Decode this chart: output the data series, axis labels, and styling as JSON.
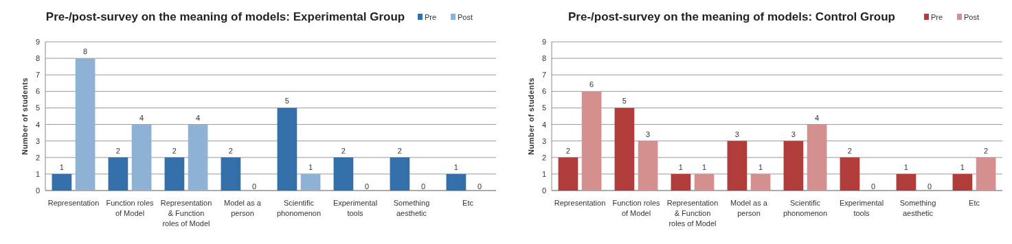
{
  "chart_data": [
    {
      "type": "bar",
      "title": "Pre-/post-survey on the meaning of models: Experimental Group",
      "ylabel": "Number of students",
      "categories": [
        "Representation",
        "Function roles of Model",
        "Representation & Function roles of Model",
        "Model as a person",
        "Scientific phonomenon",
        "Experimental tools",
        "Something aesthetic",
        "Etc"
      ],
      "series": [
        {
          "name": "Pre",
          "color": "#336fa8",
          "values": [
            1,
            2,
            2,
            2,
            5,
            2,
            2,
            1
          ]
        },
        {
          "name": "Post",
          "color": "#8fb1d6",
          "values": [
            8,
            4,
            4,
            0,
            1,
            0,
            0,
            0
          ]
        }
      ],
      "ylim": [
        0,
        9
      ],
      "yticks": [
        0,
        1,
        2,
        3,
        4,
        5,
        6,
        7,
        8,
        9
      ],
      "grid": "y",
      "legend": "top right",
      "data_labels": true
    },
    {
      "type": "bar",
      "title": "Pre-/post-survey on the meaning of models: Control Group",
      "ylabel": "Number of students",
      "categories": [
        "Representation",
        "Function roles of Model",
        "Representation & Function roles of Model",
        "Model as a person",
        "Scientific phonomenon",
        "Experimental tools",
        "Something aesthetic",
        "Etc"
      ],
      "series": [
        {
          "name": "Pre",
          "color": "#b03c3c",
          "values": [
            2,
            5,
            1,
            3,
            3,
            2,
            1,
            1
          ]
        },
        {
          "name": "Post",
          "color": "#d58f8f",
          "values": [
            6,
            3,
            1,
            1,
            4,
            0,
            0,
            2
          ]
        }
      ],
      "ylim": [
        0,
        9
      ],
      "yticks": [
        0,
        1,
        2,
        3,
        4,
        5,
        6,
        7,
        8,
        9
      ],
      "grid": "y",
      "legend": "top right",
      "data_labels": true
    }
  ]
}
